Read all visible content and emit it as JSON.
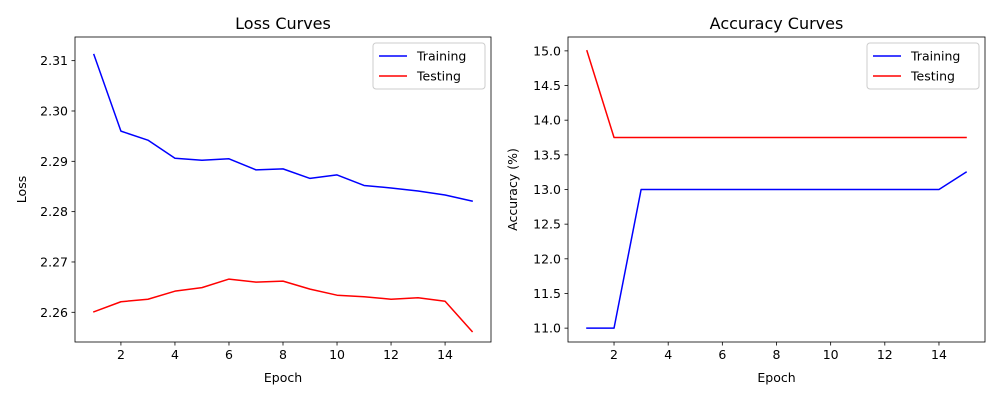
{
  "chart_data": [
    {
      "type": "line",
      "title": "Loss Curves",
      "xlabel": "Epoch",
      "ylabel": "Loss",
      "xlim": [
        0.3,
        15.7
      ],
      "ylim": [
        2.2541,
        2.3147
      ],
      "xticks": [
        2,
        4,
        6,
        8,
        10,
        12,
        14
      ],
      "xtick_labels": [
        "2",
        "4",
        "6",
        "8",
        "10",
        "12",
        "14"
      ],
      "yticks": [
        2.26,
        2.27,
        2.28,
        2.29,
        2.3,
        2.31
      ],
      "ytick_labels": [
        "2.26",
        "2.27",
        "2.28",
        "2.29",
        "2.30",
        "2.31"
      ],
      "legend_position": "top-right",
      "grid": false,
      "x": [
        1,
        2,
        3,
        4,
        5,
        6,
        7,
        8,
        9,
        10,
        11,
        12,
        13,
        14,
        15
      ],
      "series": [
        {
          "name": "Training",
          "color": "#0000ff",
          "values": [
            2.3112,
            2.296,
            2.2942,
            2.2906,
            2.2902,
            2.2905,
            2.2883,
            2.2885,
            2.2866,
            2.2873,
            2.2852,
            2.2847,
            2.2841,
            2.2833,
            2.2821
          ]
        },
        {
          "name": "Testing",
          "color": "#ff0000",
          "values": [
            2.2601,
            2.2621,
            2.2626,
            2.2642,
            2.2649,
            2.2666,
            2.266,
            2.2662,
            2.2646,
            2.2634,
            2.2631,
            2.2626,
            2.2629,
            2.2622,
            2.2562
          ]
        }
      ]
    },
    {
      "type": "line",
      "title": "Accuracy Curves",
      "xlabel": "Epoch",
      "ylabel": "Accuracy (%)",
      "xlim": [
        0.3,
        15.7
      ],
      "ylim": [
        10.8,
        15.2
      ],
      "xticks": [
        2,
        4,
        6,
        8,
        10,
        12,
        14
      ],
      "xtick_labels": [
        "2",
        "4",
        "6",
        "8",
        "10",
        "12",
        "14"
      ],
      "yticks": [
        11.0,
        11.5,
        12.0,
        12.5,
        13.0,
        13.5,
        14.0,
        14.5,
        15.0
      ],
      "ytick_labels": [
        "11.0",
        "11.5",
        "12.0",
        "12.5",
        "13.0",
        "13.5",
        "14.0",
        "14.5",
        "15.0"
      ],
      "legend_position": "top-right",
      "grid": false,
      "x": [
        1,
        2,
        3,
        4,
        5,
        6,
        7,
        8,
        9,
        10,
        11,
        12,
        13,
        14,
        15
      ],
      "series": [
        {
          "name": "Training",
          "color": "#0000ff",
          "values": [
            11.0,
            11.0,
            13.0,
            13.0,
            13.0,
            13.0,
            13.0,
            13.0,
            13.0,
            13.0,
            13.0,
            13.0,
            13.0,
            13.0,
            13.25
          ]
        },
        {
          "name": "Testing",
          "color": "#ff0000",
          "values": [
            15.0,
            13.75,
            13.75,
            13.75,
            13.75,
            13.75,
            13.75,
            13.75,
            13.75,
            13.75,
            13.75,
            13.75,
            13.75,
            13.75,
            13.75
          ]
        }
      ]
    }
  ]
}
